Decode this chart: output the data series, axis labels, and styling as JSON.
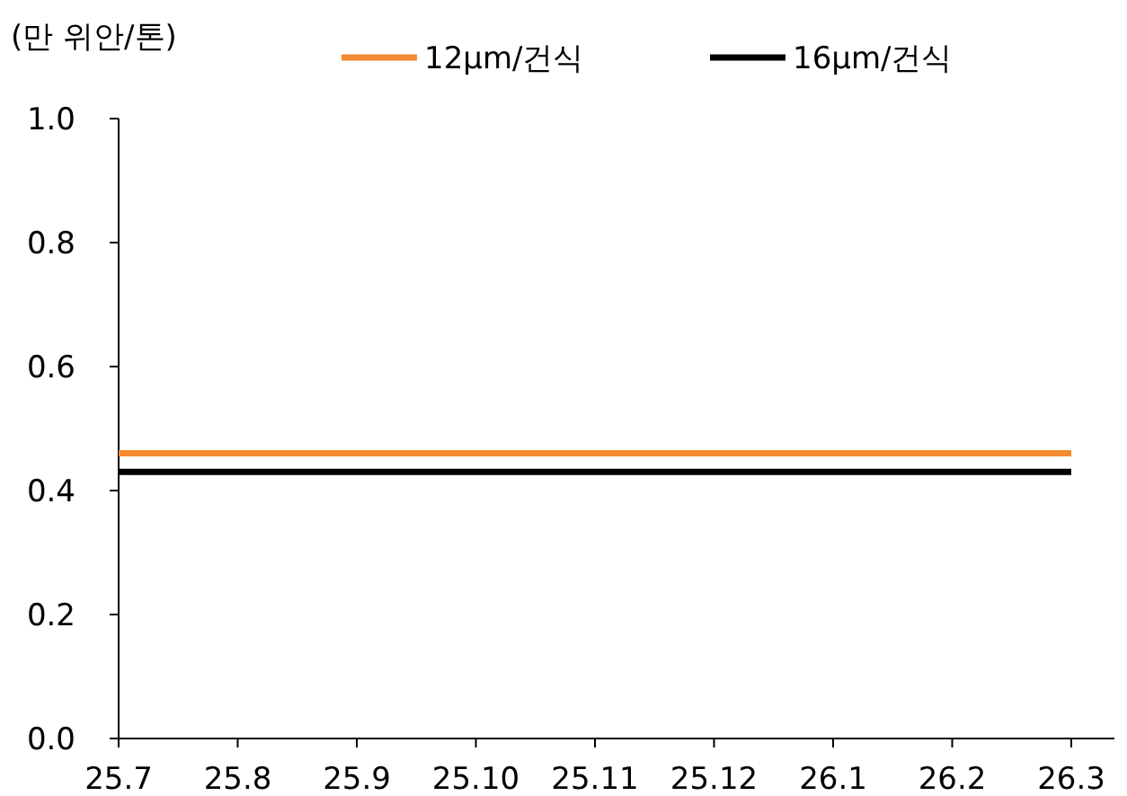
{
  "chart_data": {
    "type": "line",
    "ylabel": "(만 위안/톤)",
    "categories": [
      "25.7",
      "25.8",
      "25.9",
      "25.10",
      "25.11",
      "25.12",
      "26.1",
      "26.2",
      "26.3"
    ],
    "series": [
      {
        "name": "12µm/건식",
        "color": "#f58a32",
        "values": [
          0.46,
          0.46,
          0.46,
          0.46,
          0.46,
          0.46,
          0.46,
          0.46,
          0.46
        ]
      },
      {
        "name": "16µm/건식",
        "color": "#000000",
        "values": [
          0.43,
          0.43,
          0.43,
          0.43,
          0.43,
          0.43,
          0.43,
          0.43,
          0.43
        ]
      }
    ],
    "ylim": [
      0,
      1.0
    ],
    "yticks": [
      {
        "value": 0,
        "label": "0.0"
      },
      {
        "value": 0.2,
        "label": "0.2"
      },
      {
        "value": 0.4,
        "label": "0.4"
      },
      {
        "value": 0.6,
        "label": "0.6"
      },
      {
        "value": 0.8,
        "label": "0.8"
      },
      {
        "value": 1.0,
        "label": "1.0"
      }
    ],
    "legend": "top",
    "grid": false,
    "marker": "none",
    "line_style": "solid"
  }
}
